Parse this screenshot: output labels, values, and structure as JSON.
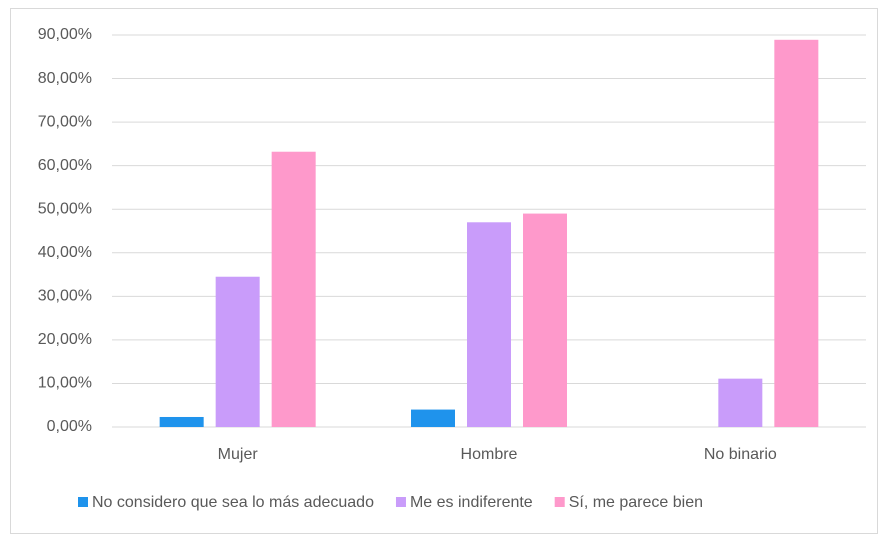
{
  "chart_data": {
    "type": "bar",
    "categories": [
      "Mujer",
      "Hombre",
      "No binario"
    ],
    "series": [
      {
        "name": "No considero que sea lo más adecuado",
        "color": "#1f93ec",
        "values": [
          2.3,
          4.0,
          0
        ]
      },
      {
        "name": "Me es indiferente",
        "color": "#c99cfa",
        "values": [
          34.5,
          47.0,
          11.1
        ]
      },
      {
        "name": "Sí, me parece bien",
        "color": "#fe99cb",
        "values": [
          63.2,
          49.0,
          88.9
        ]
      }
    ],
    "ylim": [
      0,
      90
    ],
    "yticks": [
      {
        "value": 0,
        "label": "0,00%"
      },
      {
        "value": 10,
        "label": "10,00%"
      },
      {
        "value": 20,
        "label": "20,00%"
      },
      {
        "value": 30,
        "label": "30,00%"
      },
      {
        "value": 40,
        "label": "40,00%"
      },
      {
        "value": 50,
        "label": "50,00%"
      },
      {
        "value": 60,
        "label": "60,00%"
      },
      {
        "value": 70,
        "label": "70,00%"
      },
      {
        "value": 80,
        "label": "80,00%"
      },
      {
        "value": 90,
        "label": "90,00%"
      }
    ],
    "grid": true,
    "legend": "bottom"
  }
}
